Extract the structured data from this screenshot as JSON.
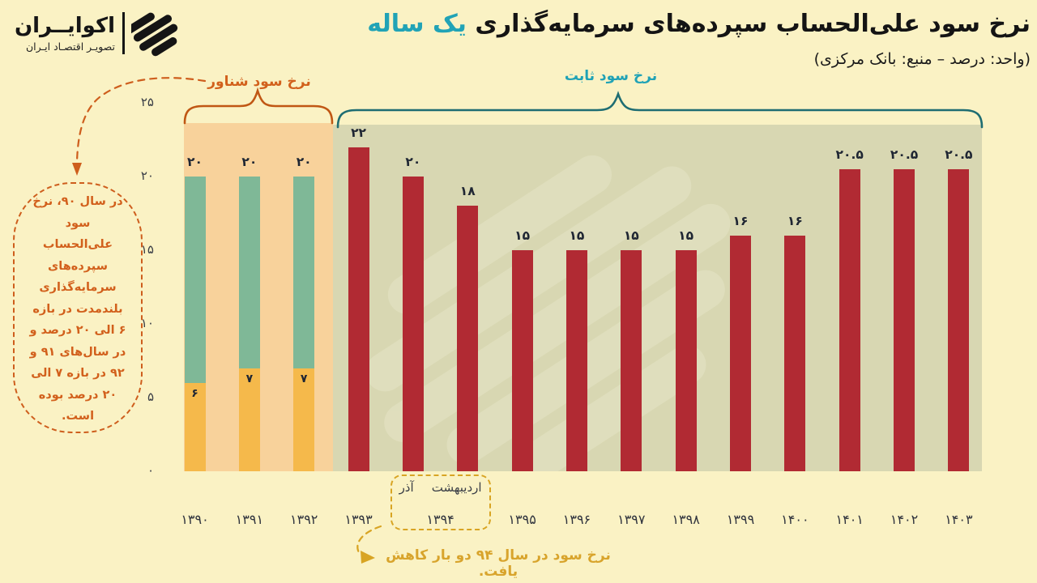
{
  "brand": {
    "wordmark": "اکوایــران",
    "tagline": "تصویـر اقتصـاد ایـران",
    "logo_icon": "ecoiran-striped-disc"
  },
  "header": {
    "title_main": "نرخ سود علی‌الحساب سپرده‌های سرمایه‌گذاری",
    "title_accent": "یک ساله",
    "subtitle": "(واحد: درصد – منبع: بانک مرکزی)"
  },
  "annotations": {
    "float_label": "نرخ سود شناور",
    "fixed_label": "نرخ سود ثابت",
    "bubble_text": "در سال ۹۰، نرخ\nسود\nعلی‌الحساب\nسپرده‌های\nسرمایه‌گذاری\nبلندمدت در بازه\n۶ الی ۲۰ درصد و\nدر سال‌های ۹۱ و\n۹۲ در بازه ۷ الی\n۲۰ درصد بوده\nاست.",
    "months_box": {
      "month_early": "اردیبهشت",
      "month_late": "آذر",
      "year": "۱۳۹۴"
    },
    "footnote": "نرخ سود در سال ۹۴ دو بار کاهش یافت."
  },
  "chart_data": {
    "type": "bar",
    "title": "نرخ سود علی‌الحساب سپرده‌های سرمایه‌گذاری یک ساله",
    "subtitle": "(واحد: درصد – منبع: بانک مرکزی)",
    "unit": "درصد",
    "source": "بانک مرکزی",
    "ylim": [
      0,
      25
    ],
    "yticks": [
      0,
      5,
      10,
      15,
      20,
      25
    ],
    "ytick_labels": [
      "۰",
      "۵",
      "۱۰",
      "۱۵",
      "۲۰",
      "۲۵"
    ],
    "legend": [
      {
        "name": "نرخ سود شناور",
        "years": "۱۳۹۰-۱۳۹۲",
        "bar_colors": [
          "#F5B94B",
          "#7FB897"
        ]
      },
      {
        "name": "نرخ سود ثابت",
        "years": "۱۳۹۳-۱۴۰۳",
        "bar_colors": [
          "#B12A33"
        ]
      }
    ],
    "bars": [
      {
        "x": "۱۳۹۰",
        "year": 1390,
        "group": "float",
        "value": 20,
        "label": "۲۰",
        "range_min": 6,
        "range_min_label": "۶"
      },
      {
        "x": "۱۳۹۱",
        "year": 1391,
        "group": "float",
        "value": 20,
        "label": "۲۰",
        "range_min": 7,
        "range_min_label": "۷"
      },
      {
        "x": "۱۳۹۲",
        "year": 1392,
        "group": "float",
        "value": 20,
        "label": "۲۰",
        "range_min": 7,
        "range_min_label": "۷"
      },
      {
        "x": "۱۳۹۳",
        "year": 1393,
        "group": "fixed",
        "value": 22,
        "label": "۲۲"
      },
      {
        "x": "۱۳۹۴",
        "year": 1394,
        "month": "اردیبهشت",
        "shared_x": "۱۳۹۴",
        "group": "fixed",
        "value": 20,
        "label": "۲۰"
      },
      {
        "x": "۱۳۹۴",
        "year": 1394,
        "month": "آذر",
        "shared_x": "۱۳۹۴",
        "group": "fixed",
        "value": 18,
        "label": "۱۸"
      },
      {
        "x": "۱۳۹۵",
        "year": 1395,
        "group": "fixed",
        "value": 15,
        "label": "۱۵"
      },
      {
        "x": "۱۳۹۶",
        "year": 1396,
        "group": "fixed",
        "value": 15,
        "label": "۱۵"
      },
      {
        "x": "۱۳۹۷",
        "year": 1397,
        "group": "fixed",
        "value": 15,
        "label": "۱۵"
      },
      {
        "x": "۱۳۹۸",
        "year": 1398,
        "group": "fixed",
        "value": 15,
        "label": "۱۵"
      },
      {
        "x": "۱۳۹۹",
        "year": 1399,
        "group": "fixed",
        "value": 16,
        "label": "۱۶"
      },
      {
        "x": "۱۴۰۰",
        "year": 1400,
        "group": "fixed",
        "value": 16,
        "label": "۱۶"
      },
      {
        "x": "۱۴۰۱",
        "year": 1401,
        "group": "fixed",
        "value": 20.5,
        "label": "۲۰.۵"
      },
      {
        "x": "۱۴۰۲",
        "year": 1402,
        "group": "fixed",
        "value": 20.5,
        "label": "۲۰.۵"
      },
      {
        "x": "۱۴۰۳",
        "year": 1403,
        "group": "fixed",
        "value": 20.5,
        "label": "۲۰.۵"
      }
    ],
    "colors": {
      "background": "#FAF2C4",
      "float_region": "#F8D29B",
      "fixed_region": "#D8D7B2",
      "float_cap_bar": "#7FB897",
      "float_min_bar": "#F5B94B",
      "fixed_bar": "#B12A33",
      "accent_teal": "#21A3B6",
      "brace_teal": "#1E6D72",
      "annotation_orange": "#CE5E1D",
      "footnote_gold": "#D8A423"
    }
  }
}
